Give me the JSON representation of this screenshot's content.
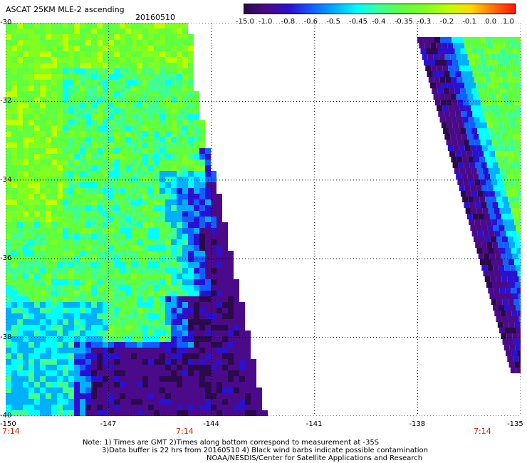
{
  "title": "ASCAT 25KM MLE-2 ascending",
  "date": "20160510",
  "colorbar": {
    "labels": [
      "-15.0",
      "-1.0",
      "-0.8",
      "-0.6",
      "-0.5",
      "-0.45",
      "-0.4",
      "-0.35",
      "-0.3",
      "-0.2",
      "-0.1",
      "0.0",
      "1.0"
    ],
    "colors": [
      "#2a0a4a",
      "#4a0a8a",
      "#2a10d0",
      "#1060ff",
      "#00b0ff",
      "#00ffff",
      "#40ff90",
      "#60ff40",
      "#80ff20",
      "#c0ff00",
      "#ffd800",
      "#ff7000",
      "#ff1010"
    ]
  },
  "map": {
    "lon_ticks": [
      "-150",
      "-147",
      "-144",
      "-141",
      "-138",
      "-135"
    ],
    "lat_ticks": [
      "-30",
      "-32",
      "-34",
      "-36",
      "-38",
      "-40"
    ],
    "lon_range": [
      -150,
      -135
    ],
    "lat_range": [
      -40,
      -30
    ],
    "grid": true,
    "swath_times": [
      "7:14",
      "7:14",
      "7:14"
    ]
  },
  "notes": [
    "Note: 1) Times are GMT 2)Times along bottom correspond to measurement at -35S",
    "3)Data buffer is 22 hrs from 20160510 4) Black wind barbs indicate possible contamination",
    "NOAA/NESDIS/Center for Satellite Applications and Research"
  ]
}
